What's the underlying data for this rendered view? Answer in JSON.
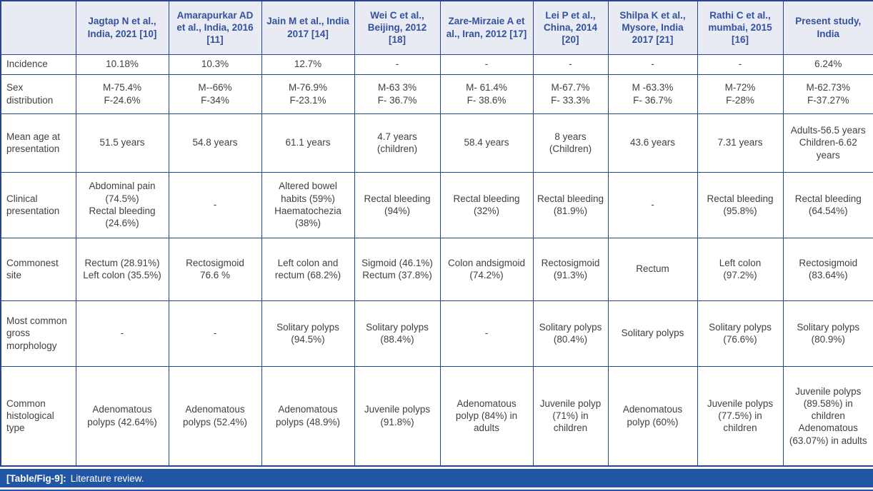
{
  "table": {
    "columns": [
      "",
      "Jagtap N et al., India, 2021 [10]",
      "Amarapurkar AD et al., India, 2016 [11]",
      "Jain M et al., India 2017 [14]",
      "Wei C et al., Beijing, 2012 [18]",
      "Zare-Mirzaie A et al., Iran, 2012 [17]",
      "Lei P et al., China, 2014 [20]",
      "Shilpa K et al., Mysore, India 2017 [21]",
      "Rathi C et al., mumbai, 2015 [16]",
      "Present study, India"
    ],
    "rows": [
      {
        "label": "Incidence",
        "cells": [
          "10.18%",
          "10.3%",
          "12.7%",
          "-",
          "-",
          "-",
          "-",
          "-",
          "6.24%"
        ]
      },
      {
        "label": "Sex distribution",
        "cells": [
          "M-75.4%\nF-24.6%",
          "M--66%\nF-34%",
          "M-76.9%\nF-23.1%",
          "M-63 3%\nF- 36.7%",
          "M- 61.4%\nF- 38.6%",
          "M-67.7%\nF- 33.3%",
          "M -63.3%\nF- 36.7%",
          "M-72%\nF-28%",
          "M-62.73%\nF-37.27%"
        ]
      },
      {
        "label": "Mean age at presentation",
        "cells": [
          "51.5 years",
          "54.8 years",
          "61.1 years",
          "4.7 years\n(children)",
          "58.4 years",
          "8 years\n(Children)",
          "43.6 years",
          "7.31 years",
          "Adults-56.5 years\nChildren-6.62 years"
        ]
      },
      {
        "label": "Clinical presentation",
        "cells": [
          "Abdominal pain (74.5%)\nRectal bleeding (24.6%)",
          "-",
          "Altered bowel habits (59%)\nHaematochezia (38%)",
          "Rectal bleeding (94%)",
          "Rectal bleeding (32%)",
          "Rectal bleeding (81.9%)",
          "-",
          "Rectal bleeding (95.8%)",
          "Rectal bleeding (64.54%)"
        ]
      },
      {
        "label": "Commonest site",
        "cells": [
          "Rectum (28.91%)\nLeft colon (35.5%)",
          "Rectosigmoid\n76.6 %",
          "Left colon and rectum (68.2%)",
          "Sigmoid (46.1%)\nRectum (37.8%)",
          "Colon andsigmoid (74.2%)",
          "Rectosigmoid (91.3%)",
          "Rectum",
          "Left colon (97.2%)",
          "Rectosigmoid (83.64%)"
        ]
      },
      {
        "label": "Most common gross morphology",
        "cells": [
          "-",
          "-",
          "Solitary polyps (94.5%)",
          "Solitary polyps (88.4%)",
          "-",
          "Solitary polyps (80.4%)",
          "Solitary polyps",
          "Solitary polyps (76.6%)",
          "Solitary polyps (80.9%)"
        ]
      },
      {
        "label": "Common histological type",
        "cells": [
          "Adenomatous polyps (42.64%)",
          "Adenomatous polyps (52.4%)",
          "Adenomatous polyps (48.9%)",
          "Juvenile polyps (91.8%)",
          "Adenomatous polyp (84%) in adults",
          "Juvenile polyp (71%) in children",
          "Adenomatous polyp (60%)",
          "Juvenile polyps (77.5%) in children",
          "Juvenile polyps (89.58%) in children Adenomatous (63.07%) in adults"
        ]
      }
    ]
  },
  "caption": {
    "tag": "[Table/Fig-9]:",
    "text": "Literature review."
  },
  "colors": {
    "border": "#27458e",
    "header_bg": "#e9ebf4",
    "header_text": "#33519e",
    "body_text": "#414141",
    "caption_bg": "#2156a5",
    "caption_text": "#ffffff"
  }
}
